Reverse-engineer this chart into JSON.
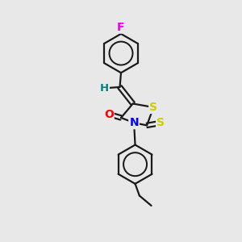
{
  "background_color": "#e8e8e8",
  "bond_color": "#1a1a1a",
  "atom_colors": {
    "F": "#ee00ee",
    "S": "#cccc00",
    "N": "#0000ff",
    "O": "#ff0000",
    "H": "#008080",
    "C": "#1a1a1a"
  },
  "line_width": 1.6,
  "dbo": 0.1,
  "font_size": 9.5,
  "figsize": [
    3.0,
    3.0
  ],
  "dpi": 100,
  "xlim": [
    0,
    10
  ],
  "ylim": [
    0,
    10
  ]
}
